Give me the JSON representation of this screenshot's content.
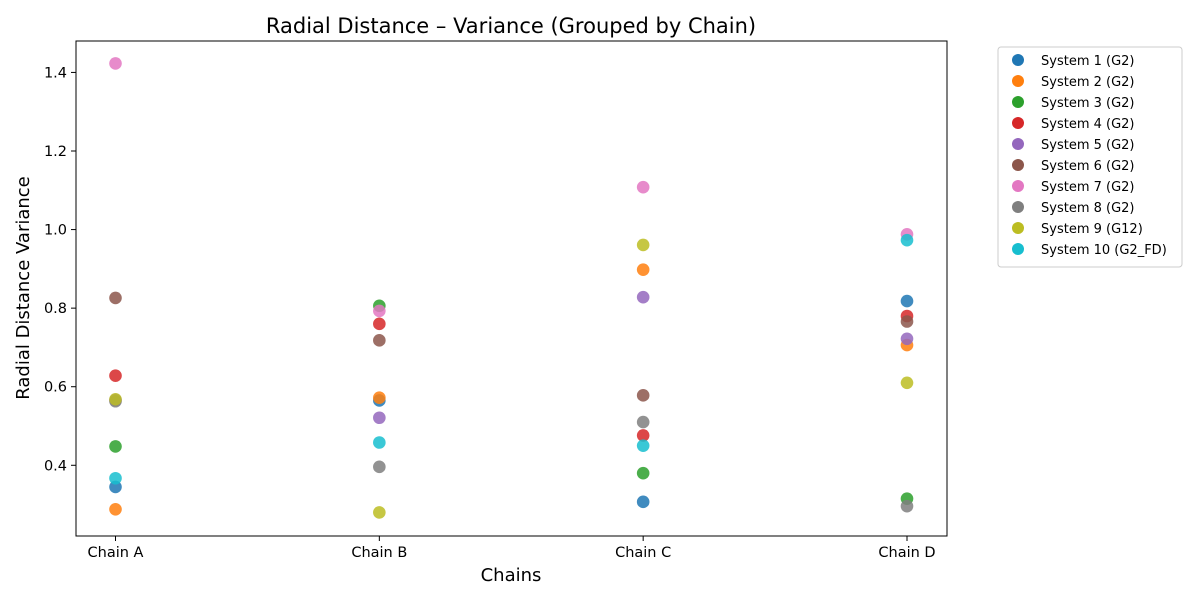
{
  "chart_data": {
    "type": "scatter",
    "title": "Radial Distance – Variance (Grouped by Chain)",
    "xlabel": "Chains",
    "ylabel": "Radial Distance Variance",
    "categories": [
      "Chain A",
      "Chain B",
      "Chain C",
      "Chain D"
    ],
    "ylim": [
      0.22,
      1.48
    ],
    "yticks": [
      0.4,
      0.6,
      0.8,
      1.0,
      1.2,
      1.4
    ],
    "ytick_labels": [
      "0.4",
      "0.6",
      "0.8",
      "1.0",
      "1.2",
      "1.4"
    ],
    "grid": false,
    "legend_position": "outside-right-top",
    "series": [
      {
        "name": "System 1 (G2)",
        "color": "#1f77b4",
        "values": [
          0.345,
          0.565,
          0.307,
          0.818
        ]
      },
      {
        "name": "System 2 (G2)",
        "color": "#ff7f0e",
        "values": [
          0.288,
          0.572,
          0.898,
          0.706
        ]
      },
      {
        "name": "System 3 (G2)",
        "color": "#2ca02c",
        "values": [
          0.448,
          0.806,
          0.38,
          0.315
        ]
      },
      {
        "name": "System 4 (G2)",
        "color": "#d62728",
        "values": [
          0.628,
          0.76,
          0.476,
          0.78
        ]
      },
      {
        "name": "System 5 (G2)",
        "color": "#9467bd",
        "values": [
          0.566,
          0.521,
          0.828,
          0.722
        ]
      },
      {
        "name": "System 6 (G2)",
        "color": "#8c564b",
        "values": [
          0.826,
          0.718,
          0.578,
          0.766
        ]
      },
      {
        "name": "System 7 (G2)",
        "color": "#e377c2",
        "values": [
          1.423,
          0.793,
          1.108,
          0.988
        ]
      },
      {
        "name": "System 8 (G2)",
        "color": "#7f7f7f",
        "values": [
          0.563,
          0.396,
          0.51,
          0.296
        ]
      },
      {
        "name": "System 9 (G12)",
        "color": "#bcbd22",
        "values": [
          0.568,
          0.28,
          0.961,
          0.61
        ]
      },
      {
        "name": "System 10 (G2_FD)",
        "color": "#17becf",
        "values": [
          0.367,
          0.458,
          0.45,
          0.973
        ]
      }
    ]
  }
}
